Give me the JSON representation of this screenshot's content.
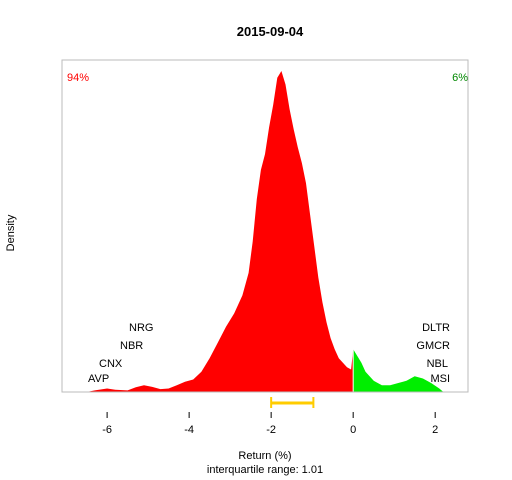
{
  "chart_data": {
    "type": "area",
    "title": "2015-09-04",
    "xlabel": "Return (%)",
    "subtitle": "interquartile range: 1.01",
    "ylabel": "Density",
    "xlim": [
      -7.1,
      2.8
    ],
    "ylim": [
      0,
      1
    ],
    "x_ticks": [
      -6,
      -4,
      -2,
      0,
      2
    ],
    "x_tick_labels": [
      "-6",
      "-4",
      "-2",
      "0",
      "2"
    ],
    "split_at": 0,
    "negative_share": "94%",
    "positive_share": "6%",
    "colors": {
      "negative": "#ff0000",
      "positive": "#00ee00",
      "iqr": "#ffcc00",
      "share_negative": "#ff0000",
      "share_positive": "#008800"
    },
    "iqr_range": [
      -2.0,
      -0.97
    ],
    "density": {
      "x": [
        -6.5,
        -6.3,
        -6.0,
        -5.8,
        -5.5,
        -5.3,
        -5.1,
        -4.9,
        -4.7,
        -4.5,
        -4.3,
        -4.1,
        -3.9,
        -3.7,
        -3.5,
        -3.3,
        -3.1,
        -2.9,
        -2.7,
        -2.55,
        -2.45,
        -2.35,
        -2.25,
        -2.15,
        -2.05,
        -1.95,
        -1.85,
        -1.75,
        -1.65,
        -1.55,
        -1.45,
        -1.35,
        -1.25,
        -1.15,
        -1.05,
        -0.95,
        -0.85,
        -0.75,
        -0.65,
        -0.55,
        -0.45,
        -0.35,
        -0.25,
        -0.15,
        -0.05,
        0.0,
        0.1,
        0.2,
        0.3,
        0.4,
        0.5,
        0.7,
        0.9,
        1.1,
        1.3,
        1.5,
        1.7,
        1.9,
        2.1,
        2.2
      ],
      "y": [
        0.0,
        0.005,
        0.011,
        0.007,
        0.005,
        0.015,
        0.021,
        0.016,
        0.009,
        0.011,
        0.021,
        0.032,
        0.039,
        0.063,
        0.105,
        0.154,
        0.203,
        0.245,
        0.301,
        0.371,
        0.469,
        0.601,
        0.692,
        0.741,
        0.825,
        0.895,
        0.979,
        1.0,
        0.958,
        0.881,
        0.818,
        0.762,
        0.713,
        0.65,
        0.552,
        0.455,
        0.357,
        0.28,
        0.217,
        0.168,
        0.133,
        0.105,
        0.091,
        0.077,
        0.07,
        0.133,
        0.112,
        0.091,
        0.063,
        0.049,
        0.035,
        0.021,
        0.021,
        0.028,
        0.035,
        0.049,
        0.042,
        0.028,
        0.011,
        0.0
      ]
    },
    "annotations_left": [
      "NRG",
      "NBR",
      "CNX",
      "AVP"
    ],
    "annotations_right": [
      "DLTR",
      "GMCR",
      "NBL",
      "MSI"
    ]
  }
}
